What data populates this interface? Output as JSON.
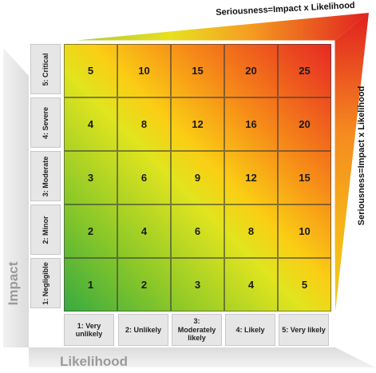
{
  "diagram": {
    "top_title": "Seriousness=Impact x Likelihood",
    "side_title": "Seriousness=Impact x Likelihood",
    "impact_axis_label": "Impact",
    "likelihood_axis_label": "Likelihood",
    "impact_levels": [
      "5: Critical",
      "4: Severe",
      "3: Moderate",
      "2: Minor",
      "1: Negligible"
    ],
    "likelihood_levels": [
      "1: Very unlikely",
      "2: Unlikely",
      "3: Moderately likely",
      "4: Likely",
      "5: Very likely"
    ],
    "matrix": [
      [
        "5",
        "10",
        "15",
        "20",
        "25"
      ],
      [
        "4",
        "8",
        "12",
        "16",
        "20"
      ],
      [
        "3",
        "6",
        "9",
        "12",
        "15"
      ],
      [
        "2",
        "4",
        "6",
        "8",
        "10"
      ],
      [
        "1",
        "2",
        "3",
        "4",
        "5"
      ]
    ],
    "colors": {
      "low": "#38aa40",
      "medium": "#f0e020",
      "high": "#e62824",
      "axis_grey": "#9a9a9a",
      "label_bg": "#e6e6e6"
    }
  }
}
